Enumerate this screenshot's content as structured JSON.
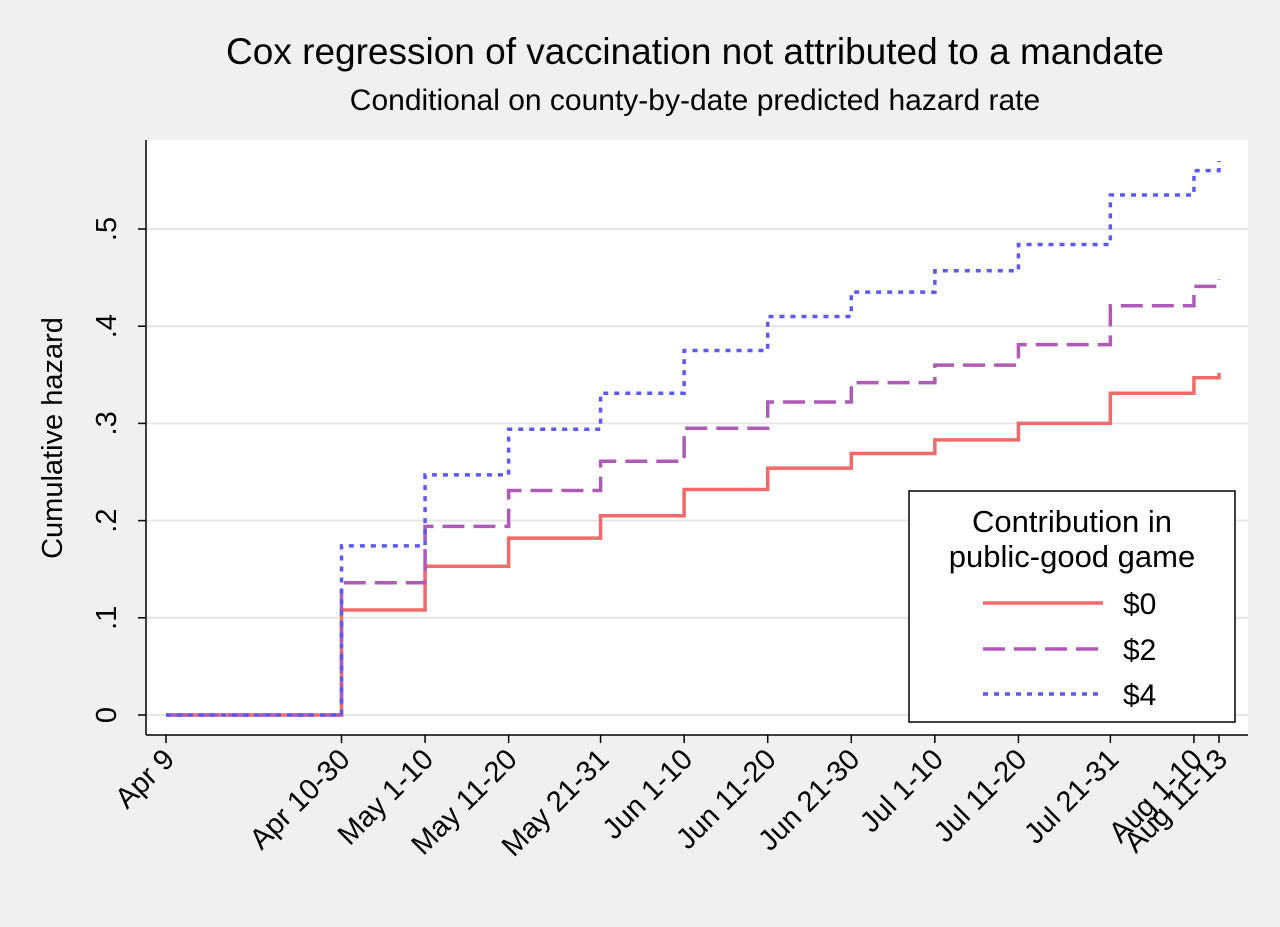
{
  "chart_data": {
    "type": "line",
    "title": "Cox regression of vaccination not attributed to a mandate",
    "subtitle": "Conditional on county-by-date predicted hazard rate",
    "xlabel": "",
    "ylabel": "Cumulative hazard",
    "x_categories": [
      "Apr 9",
      "Apr 10-30",
      "May 1-10",
      "May 11-20",
      "May 21-31",
      "Jun 1-10",
      "Jun 11-20",
      "Jun 21-30",
      "Jul 1-10",
      "Jul 11-20",
      "Jul 21-31",
      "Aug 1-10",
      "Aug 11-13"
    ],
    "x_dates": [
      "2021-04-09",
      "2021-04-30",
      "2021-05-10",
      "2021-05-20",
      "2021-05-31",
      "2021-06-10",
      "2021-06-20",
      "2021-06-30",
      "2021-07-10",
      "2021-07-20",
      "2021-07-31",
      "2021-08-10",
      "2021-08-13"
    ],
    "ylim": [
      -0.02,
      0.6
    ],
    "yticks": [
      0,
      0.1,
      0.2,
      0.3,
      0.4,
      0.5
    ],
    "ytick_labels": [
      "0",
      ".1",
      ".2",
      ".3",
      ".4",
      ".5"
    ],
    "grid": true,
    "step": true,
    "legend": {
      "title_lines": [
        "Contribution in",
        "public-good game"
      ],
      "placement": "bottom-right inside plot"
    },
    "series": [
      {
        "name": "$0",
        "color": "#f06a6a",
        "style": "solid",
        "x": [
          "2021-04-09",
          "2021-04-30",
          "2021-05-10",
          "2021-05-20",
          "2021-05-31",
          "2021-06-10",
          "2021-06-20",
          "2021-06-30",
          "2021-07-10",
          "2021-07-20",
          "2021-07-31",
          "2021-08-10",
          "2021-08-13"
        ],
        "y": [
          0,
          0.108,
          0.153,
          0.182,
          0.205,
          0.232,
          0.254,
          0.269,
          0.283,
          0.3,
          0.331,
          0.347,
          0.352
        ]
      },
      {
        "name": "$2",
        "color": "#b05ab8",
        "style": "dashed",
        "x": [
          "2021-04-09",
          "2021-04-30",
          "2021-05-10",
          "2021-05-20",
          "2021-05-31",
          "2021-06-10",
          "2021-06-20",
          "2021-06-30",
          "2021-07-10",
          "2021-07-20",
          "2021-07-31",
          "2021-08-10",
          "2021-08-13"
        ],
        "y": [
          0,
          0.136,
          0.194,
          0.231,
          0.261,
          0.295,
          0.322,
          0.342,
          0.36,
          0.381,
          0.421,
          0.441,
          0.448
        ]
      },
      {
        "name": "$4",
        "color": "#5a5af0",
        "style": "dotted",
        "x": [
          "2021-04-09",
          "2021-04-30",
          "2021-05-10",
          "2021-05-20",
          "2021-05-31",
          "2021-06-10",
          "2021-06-20",
          "2021-06-30",
          "2021-07-10",
          "2021-07-20",
          "2021-07-31",
          "2021-08-10",
          "2021-08-13"
        ],
        "y": [
          0,
          0.174,
          0.247,
          0.294,
          0.331,
          0.375,
          0.41,
          0.435,
          0.457,
          0.484,
          0.535,
          0.56,
          0.57
        ]
      }
    ]
  }
}
